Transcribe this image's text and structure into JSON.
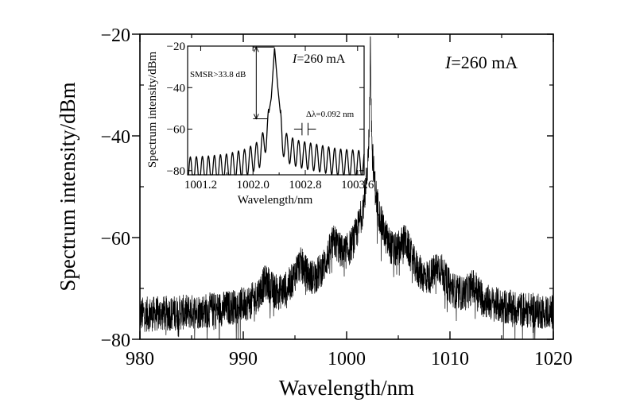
{
  "chart_data": [
    {
      "id": "main",
      "type": "line",
      "xlabel": "Wavelength/nm",
      "ylabel": "Spectrum intensity/dBm",
      "xlim": [
        980,
        1020
      ],
      "ylim": [
        -80,
        -20
      ],
      "xticks": [
        980,
        990,
        1000,
        1010,
        1020
      ],
      "yticks": [
        -80,
        -60,
        -40,
        -20
      ],
      "xtick_labels": [
        "980",
        "990",
        "1000",
        "1010",
        "1020"
      ],
      "ytick_labels": [
        "−80",
        "−60",
        "−40",
        "−20"
      ],
      "annotation": {
        "italic": "I",
        "text": "=260 mA"
      },
      "noise_floor_dbm": -76,
      "main_peak": {
        "x": 1002.3,
        "y": -20.5
      },
      "side_lobes": [
        {
          "x": 992.2,
          "y": -70
        },
        {
          "x": 995.5,
          "y": -66.5
        },
        {
          "x": 998.8,
          "y": -62
        },
        {
          "x": 1005.6,
          "y": -62
        },
        {
          "x": 1008.9,
          "y": -67
        },
        {
          "x": 1012.3,
          "y": -71
        }
      ],
      "series": [
        {
          "values_x": [
            980,
            983,
            986,
            989,
            991,
            992.2,
            993.5,
            995.5,
            997,
            998.8,
            1000,
            1001.5,
            1002.0,
            1002.3,
            1002.6,
            1003.3,
            1004.5,
            1005.6,
            1007,
            1008.9,
            1010.5,
            1012.3,
            1014,
            1017,
            1020
          ],
          "values_y": [
            -76.5,
            -76,
            -75.5,
            -74,
            -72.5,
            -70,
            -70.5,
            -66.5,
            -68,
            -62,
            -66,
            -66,
            -55,
            -20.5,
            -55,
            -66,
            -66,
            -62,
            -68,
            -67,
            -70,
            -71,
            -73.5,
            -75.5,
            -76.5
          ]
        }
      ]
    },
    {
      "id": "inset",
      "type": "line",
      "xlabel": "Wavelength/nm",
      "ylabel": "Spectrum intensity/dBm",
      "xlim": [
        1001.0,
        1003.7
      ],
      "ylim": [
        -82,
        -20
      ],
      "xticks": [
        1001.2,
        1002.0,
        1002.8,
        1003.6
      ],
      "yticks": [
        -80,
        -60,
        -40,
        -20
      ],
      "xtick_labels": [
        "1001.2",
        "1002.0",
        "1002.8",
        "1003.6"
      ],
      "ytick_labels": [
        "−80",
        "−60",
        "−40",
        "−20"
      ],
      "annotation": {
        "italic": "I",
        "text": "=260 mA"
      },
      "smsr_label": "SMSR>33.8 dB",
      "delta_label": "Δλ=0.092 nm",
      "mode_spacing_nm": 0.092,
      "peak": {
        "x": 1002.33,
        "y": -20.5
      },
      "series": [
        {
          "values_x": [
            1001.0,
            1001.3,
            1001.6,
            1001.9,
            1002.1,
            1002.2,
            1002.28,
            1002.33,
            1002.38,
            1002.45,
            1002.55,
            1002.7,
            1003.0,
            1003.3,
            1003.7
          ],
          "values_y": [
            -76,
            -75.5,
            -74.5,
            -72,
            -68,
            -60,
            -45,
            -20.5,
            -40,
            -62,
            -66,
            -68,
            -70,
            -72,
            -73
          ]
        }
      ]
    }
  ]
}
